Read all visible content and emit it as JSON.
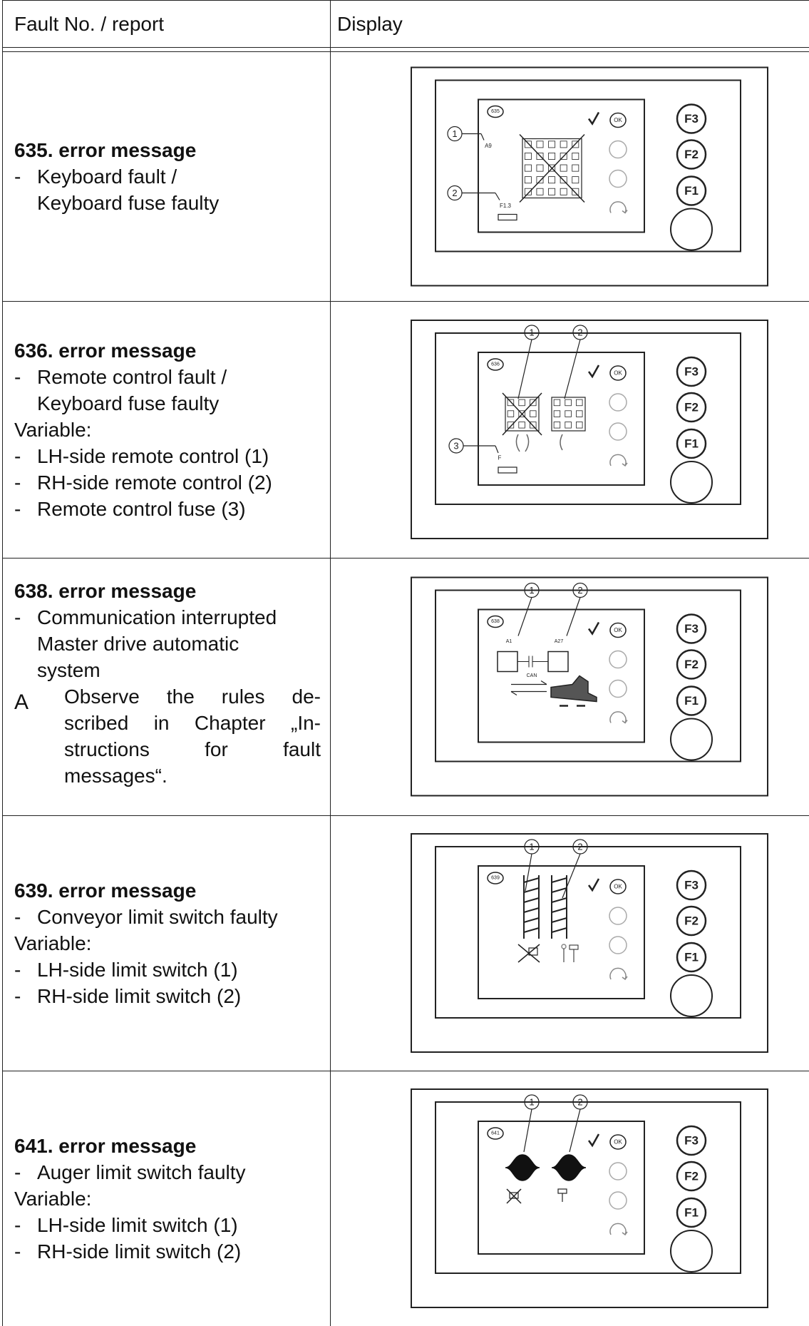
{
  "table": {
    "headers": [
      "Fault No. / report",
      "Display"
    ],
    "display_keys": [
      "F3",
      "F2",
      "F1"
    ],
    "ok": "OK",
    "rows": [
      {
        "title": "635. error message",
        "items": [
          {
            "dash": "-",
            "text": [
              "Keyboard fault /",
              "Keyboard fuse faulty"
            ]
          }
        ],
        "display": {
          "code": "635",
          "callouts": [
            "1",
            "2"
          ],
          "labels": [
            "A9",
            "F1.3"
          ]
        }
      },
      {
        "title": "636. error message",
        "items": [
          {
            "dash": "-",
            "text": [
              "Remote control fault /",
              "Keyboard fuse faulty"
            ]
          },
          {
            "text": [
              "Variable:"
            ]
          },
          {
            "dash": "-",
            "text": [
              "LH-side remote control (1)"
            ]
          },
          {
            "dash": "-",
            "text": [
              "RH-side remote control (2)"
            ]
          },
          {
            "dash": "-",
            "text": [
              "Remote control fuse (3)"
            ]
          }
        ],
        "display": {
          "code": "636",
          "callouts": [
            "1",
            "2",
            "3"
          ],
          "labels": [
            "F"
          ]
        }
      },
      {
        "title": "638. error message",
        "items": [
          {
            "dash": "-",
            "text": [
              "Communication interrupted",
              "Master drive automatic",
              "system"
            ]
          }
        ],
        "note": {
          "mark": "A",
          "lines": [
            "Observe the rules de-",
            "scribed in Chapter „In-",
            "structions for fault",
            "messages“."
          ]
        },
        "display": {
          "code": "638",
          "callouts": [
            "1",
            "2"
          ],
          "labels": [
            "A1",
            "A27",
            "CAN"
          ]
        }
      },
      {
        "title": "639. error message",
        "items": [
          {
            "dash": "-",
            "text": [
              "Conveyor limit switch faulty"
            ]
          },
          {
            "text": [
              "Variable:"
            ]
          },
          {
            "dash": "-",
            "text": [
              "LH-side limit switch (1)"
            ]
          },
          {
            "dash": "-",
            "text": [
              "RH-side limit switch (2)"
            ]
          }
        ],
        "display": {
          "code": "639",
          "callouts": [
            "1",
            "2"
          ]
        }
      },
      {
        "title": "641. error message",
        "items": [
          {
            "dash": "-",
            "text": [
              "Auger limit switch faulty"
            ]
          },
          {
            "text": [
              "Variable:"
            ]
          },
          {
            "dash": "-",
            "text": [
              "LH-side limit switch (1)"
            ]
          },
          {
            "dash": "-",
            "text": [
              "RH-side limit switch (2)"
            ]
          }
        ],
        "display": {
          "code": "641",
          "callouts": [
            "1",
            "2"
          ]
        }
      }
    ]
  }
}
